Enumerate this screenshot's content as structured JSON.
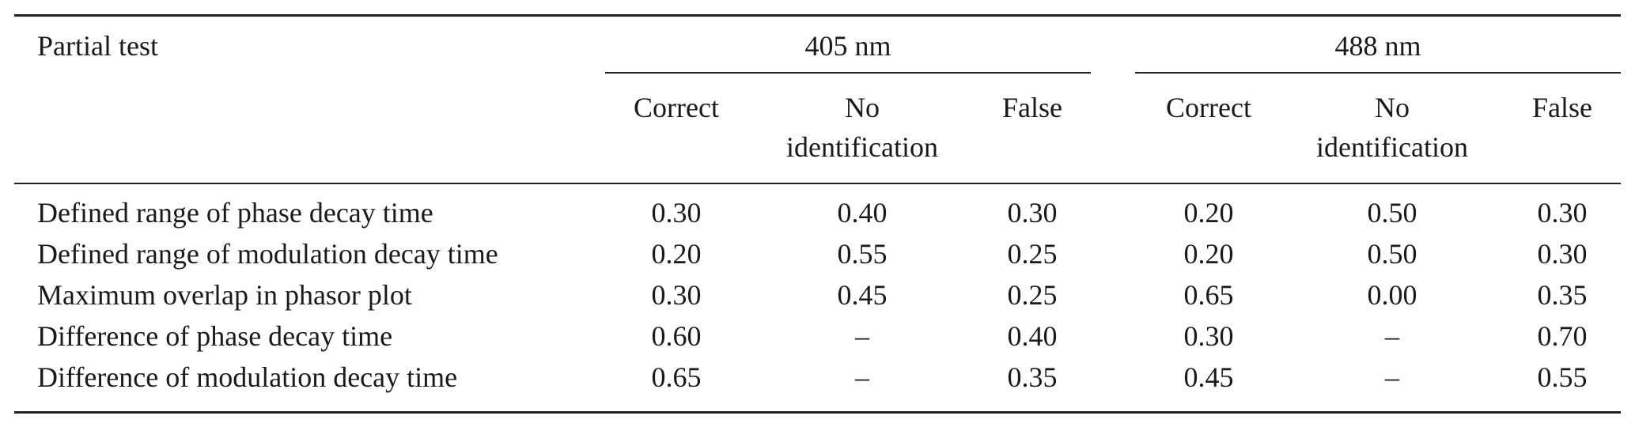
{
  "table": {
    "stub_header": "Partial test",
    "groups": [
      {
        "label": "405 nm",
        "columns": [
          "Correct",
          "No identification",
          "False"
        ]
      },
      {
        "label": "488 nm",
        "columns": [
          "Correct",
          "No identification",
          "False"
        ]
      }
    ],
    "subheaders": {
      "correct": "Correct",
      "no_line1": "No",
      "no_line2": "identification",
      "false": "False"
    },
    "rows": [
      {
        "label": "Defined range of phase decay time",
        "values": [
          "0.30",
          "0.40",
          "0.30",
          "0.20",
          "0.50",
          "0.30"
        ]
      },
      {
        "label": "Defined range of modulation decay time",
        "values": [
          "0.20",
          "0.55",
          "0.25",
          "0.20",
          "0.50",
          "0.30"
        ]
      },
      {
        "label": "Maximum overlap in phasor plot",
        "values": [
          "0.30",
          "0.45",
          "0.25",
          "0.65",
          "0.00",
          "0.35"
        ]
      },
      {
        "label": "Difference of phase decay time",
        "values": [
          "0.60",
          "–",
          "0.40",
          "0.30",
          "–",
          "0.70"
        ]
      },
      {
        "label": "Difference of modulation decay time",
        "values": [
          "0.65",
          "–",
          "0.35",
          "0.45",
          "–",
          "0.55"
        ]
      }
    ]
  }
}
